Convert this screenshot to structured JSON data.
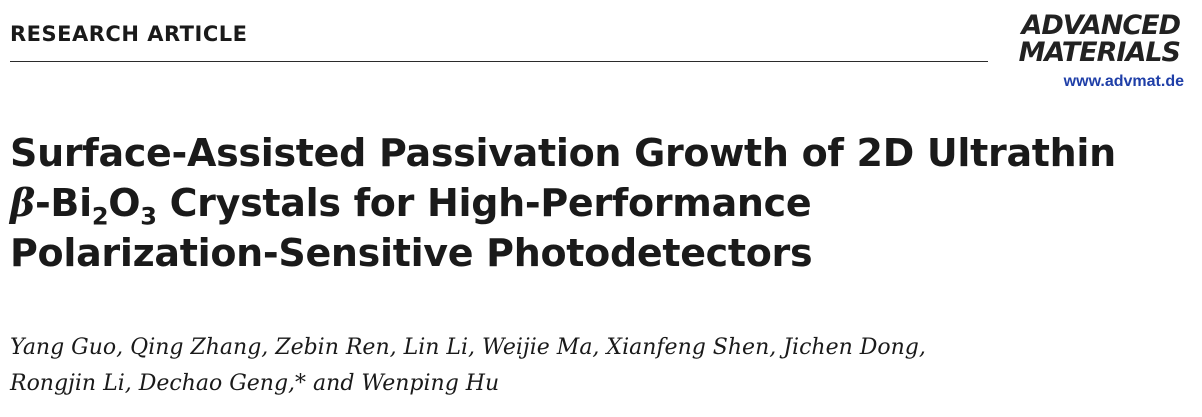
{
  "header": {
    "section_label": "RESEARCH ARTICLE"
  },
  "journal": {
    "logo_line1": "ADVANCED",
    "logo_line2": "MATERIALS",
    "url": "www.advmat.de",
    "url_color": "#1f3fa8"
  },
  "title": {
    "line1": "Surface-Assisted Passivation Growth of 2D Ultrathin",
    "line2_beta": "β",
    "line2_bi": "-Bi",
    "line2_sub1": "2",
    "line2_o": "O",
    "line2_sub2": "3",
    "line2_rest": " Crystals for High-Performance",
    "line3": "Polarization-Sensitive Photodetectors"
  },
  "authors": {
    "line1": "Yang Guo, Qing Zhang, Zebin Ren, Lin Li, Weijie Ma, Xianfeng Shen, Jichen Dong,",
    "line2": "Rongjin Li, Dechao Geng,* and Wenping Hu"
  }
}
